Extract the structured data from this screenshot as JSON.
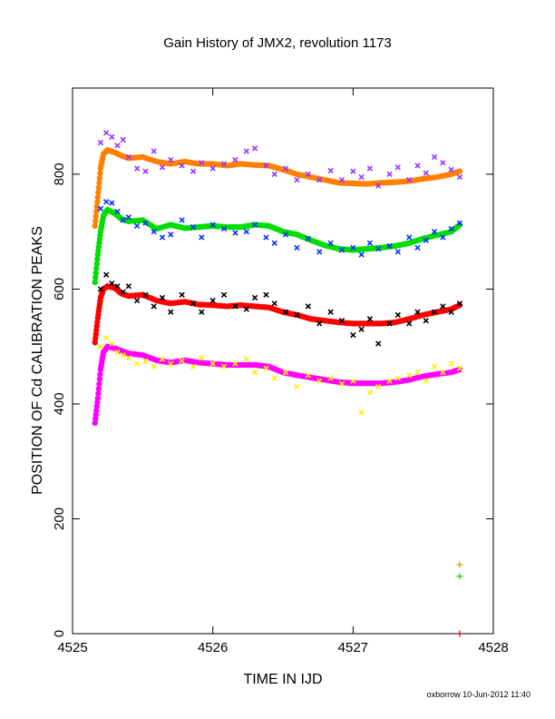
{
  "chart_data": {
    "type": "scatter",
    "title": "Gain History of JMX2, revolution 1173",
    "xlabel": "TIME IN IJD",
    "ylabel": "POSITION OF Cd CALIBRATION PEAKS",
    "xlim": [
      4525,
      4528
    ],
    "ylim": [
      0,
      950
    ],
    "xticks": [
      4525,
      4526,
      4527,
      4528
    ],
    "yticks": [
      0,
      200,
      400,
      600,
      800
    ],
    "xtick_labels": [
      "4525",
      "4526",
      "4527",
      "4528"
    ],
    "ytick_labels": [
      "0",
      "200",
      "400",
      "600",
      "800"
    ],
    "grid": false,
    "legend": "none",
    "footer": "oxborrow 10-Jun-2012 11:40",
    "series": [
      {
        "role": "smoothed",
        "color": "#ff8000",
        "x": [
          4525.16,
          4525.18,
          4525.2,
          4525.22,
          4525.25,
          4525.3,
          4525.35,
          4525.4,
          4525.5,
          4525.6,
          4525.7,
          4525.8,
          4525.9,
          4526.0,
          4526.1,
          4526.2,
          4526.3,
          4526.4,
          4526.5,
          4526.6,
          4526.7,
          4526.8,
          4526.9,
          4527.0,
          4527.1,
          4527.2,
          4527.3,
          4527.4,
          4527.5,
          4527.6,
          4527.7,
          4527.76
        ],
        "y": [
          710,
          760,
          810,
          835,
          842,
          838,
          832,
          828,
          830,
          822,
          818,
          822,
          818,
          818,
          815,
          818,
          816,
          815,
          808,
          800,
          795,
          790,
          785,
          784,
          783,
          785,
          786,
          788,
          792,
          795,
          800,
          805
        ]
      },
      {
        "role": "raw",
        "color": "#9933ff",
        "x": [
          4525.2,
          4525.24,
          4525.28,
          4525.32,
          4525.36,
          4525.4,
          4525.46,
          4525.52,
          4525.58,
          4525.64,
          4525.7,
          4525.78,
          4525.86,
          4525.92,
          4526.0,
          4526.08,
          4526.16,
          4526.24,
          4526.3,
          4526.38,
          4526.44,
          4526.52,
          4526.6,
          4526.68,
          4526.76,
          4526.84,
          4526.92,
          4527.0,
          4527.06,
          4527.12,
          4527.18,
          4527.26,
          4527.32,
          4527.4,
          4527.46,
          4527.52,
          4527.58,
          4527.64,
          4527.7,
          4527.76
        ],
        "y": [
          855,
          872,
          865,
          850,
          860,
          830,
          810,
          805,
          840,
          812,
          825,
          815,
          805,
          820,
          810,
          818,
          825,
          840,
          845,
          815,
          800,
          810,
          790,
          800,
          790,
          806,
          790,
          805,
          795,
          810,
          780,
          800,
          812,
          790,
          815,
          802,
          830,
          820,
          808,
          795
        ]
      },
      {
        "role": "smoothed",
        "color": "#00dd00",
        "x": [
          4525.16,
          4525.18,
          4525.2,
          4525.22,
          4525.25,
          4525.3,
          4525.35,
          4525.4,
          4525.5,
          4525.6,
          4525.7,
          4525.8,
          4525.9,
          4526.0,
          4526.1,
          4526.2,
          4526.3,
          4526.4,
          4526.5,
          4526.6,
          4526.7,
          4526.8,
          4526.9,
          4527.0,
          4527.1,
          4527.2,
          4527.3,
          4527.4,
          4527.5,
          4527.6,
          4527.7,
          4527.76
        ],
        "y": [
          612,
          660,
          700,
          728,
          738,
          732,
          722,
          718,
          720,
          705,
          712,
          706,
          708,
          710,
          708,
          708,
          712,
          710,
          700,
          695,
          685,
          676,
          670,
          668,
          670,
          672,
          675,
          680,
          688,
          694,
          700,
          712
        ]
      },
      {
        "role": "raw",
        "color": "#0033ff",
        "x": [
          4525.2,
          4525.24,
          4525.28,
          4525.32,
          4525.36,
          4525.4,
          4525.46,
          4525.52,
          4525.58,
          4525.64,
          4525.7,
          4525.78,
          4525.86,
          4525.92,
          4526.0,
          4526.08,
          4526.16,
          4526.24,
          4526.3,
          4526.38,
          4526.44,
          4526.52,
          4526.6,
          4526.68,
          4526.76,
          4526.84,
          4526.92,
          4527.0,
          4527.06,
          4527.12,
          4527.18,
          4527.26,
          4527.32,
          4527.4,
          4527.46,
          4527.52,
          4527.58,
          4527.64,
          4527.7,
          4527.76
        ],
        "y": [
          740,
          752,
          750,
          735,
          720,
          725,
          710,
          715,
          700,
          690,
          695,
          720,
          708,
          690,
          712,
          705,
          698,
          700,
          712,
          690,
          680,
          695,
          672,
          688,
          665,
          680,
          668,
          672,
          660,
          680,
          670,
          675,
          665,
          690,
          672,
          685,
          700,
          690,
          705,
          715
        ]
      },
      {
        "role": "smoothed",
        "color": "#ff0000",
        "x": [
          4525.16,
          4525.18,
          4525.2,
          4525.22,
          4525.25,
          4525.3,
          4525.35,
          4525.4,
          4525.5,
          4525.6,
          4525.7,
          4525.8,
          4525.9,
          4526.0,
          4526.1,
          4526.2,
          4526.3,
          4526.4,
          4526.5,
          4526.6,
          4526.7,
          4526.8,
          4526.9,
          4527.0,
          4527.1,
          4527.2,
          4527.3,
          4527.4,
          4527.5,
          4527.6,
          4527.7,
          4527.76
        ],
        "y": [
          507,
          550,
          585,
          600,
          605,
          602,
          592,
          588,
          590,
          580,
          575,
          578,
          573,
          572,
          570,
          572,
          570,
          568,
          560,
          555,
          548,
          545,
          542,
          540,
          540,
          540,
          542,
          548,
          555,
          560,
          565,
          572
        ]
      },
      {
        "role": "raw",
        "color": "#000000",
        "x": [
          4525.2,
          4525.24,
          4525.28,
          4525.32,
          4525.36,
          4525.4,
          4525.46,
          4525.52,
          4525.58,
          4525.64,
          4525.7,
          4525.78,
          4525.86,
          4525.92,
          4526.0,
          4526.08,
          4526.16,
          4526.24,
          4526.3,
          4526.38,
          4526.44,
          4526.52,
          4526.6,
          4526.68,
          4526.76,
          4526.84,
          4526.92,
          4527.0,
          4527.06,
          4527.12,
          4527.18,
          4527.26,
          4527.32,
          4527.4,
          4527.46,
          4527.52,
          4527.58,
          4527.64,
          4527.7,
          4527.76
        ],
        "y": [
          600,
          625,
          610,
          605,
          595,
          605,
          580,
          590,
          570,
          585,
          560,
          590,
          575,
          560,
          580,
          590,
          570,
          565,
          585,
          590,
          575,
          560,
          555,
          570,
          540,
          560,
          545,
          520,
          530,
          548,
          505,
          540,
          555,
          540,
          560,
          545,
          560,
          570,
          560,
          575
        ]
      },
      {
        "role": "smoothed",
        "color": "#ff00ff",
        "x": [
          4525.16,
          4525.18,
          4525.2,
          4525.22,
          4525.25,
          4525.3,
          4525.35,
          4525.4,
          4525.5,
          4525.6,
          4525.7,
          4525.8,
          4525.9,
          4526.0,
          4526.1,
          4526.2,
          4526.3,
          4526.4,
          4526.5,
          4526.6,
          4526.7,
          4526.8,
          4526.9,
          4527.0,
          4527.1,
          4527.2,
          4527.3,
          4527.4,
          4527.5,
          4527.6,
          4527.7,
          4527.76
        ],
        "y": [
          367,
          410,
          460,
          490,
          500,
          497,
          492,
          488,
          485,
          476,
          472,
          476,
          472,
          470,
          468,
          468,
          468,
          465,
          455,
          450,
          446,
          442,
          438,
          436,
          436,
          436,
          438,
          442,
          448,
          452,
          455,
          460
        ]
      },
      {
        "role": "raw",
        "color": "#ffee00",
        "x": [
          4525.2,
          4525.24,
          4525.28,
          4525.32,
          4525.36,
          4525.4,
          4525.46,
          4525.52,
          4525.58,
          4525.64,
          4525.7,
          4525.78,
          4525.86,
          4525.92,
          4526.0,
          4526.08,
          4526.16,
          4526.24,
          4526.3,
          4526.38,
          4526.44,
          4526.52,
          4526.6,
          4526.68,
          4526.76,
          4526.84,
          4526.92,
          4527.0,
          4527.06,
          4527.12,
          4527.18,
          4527.26,
          4527.32,
          4527.4,
          4527.46,
          4527.52,
          4527.58,
          4527.64,
          4527.7,
          4527.76
        ],
        "y": [
          500,
          515,
          505,
          490,
          485,
          480,
          470,
          475,
          465,
          478,
          470,
          475,
          465,
          480,
          470,
          465,
          470,
          478,
          455,
          462,
          445,
          455,
          430,
          450,
          440,
          445,
          435,
          440,
          385,
          420,
          430,
          440,
          445,
          450,
          455,
          440,
          465,
          455,
          470,
          462
        ]
      },
      {
        "role": "outlier",
        "color": "#ff8000",
        "x": [
          4527.76
        ],
        "y": [
          120
        ]
      },
      {
        "role": "outlier",
        "color": "#00dd00",
        "x": [
          4527.76
        ],
        "y": [
          100
        ]
      },
      {
        "role": "outlier",
        "color": "#cc0000",
        "x": [
          4527.76
        ],
        "y": [
          0
        ]
      }
    ]
  }
}
